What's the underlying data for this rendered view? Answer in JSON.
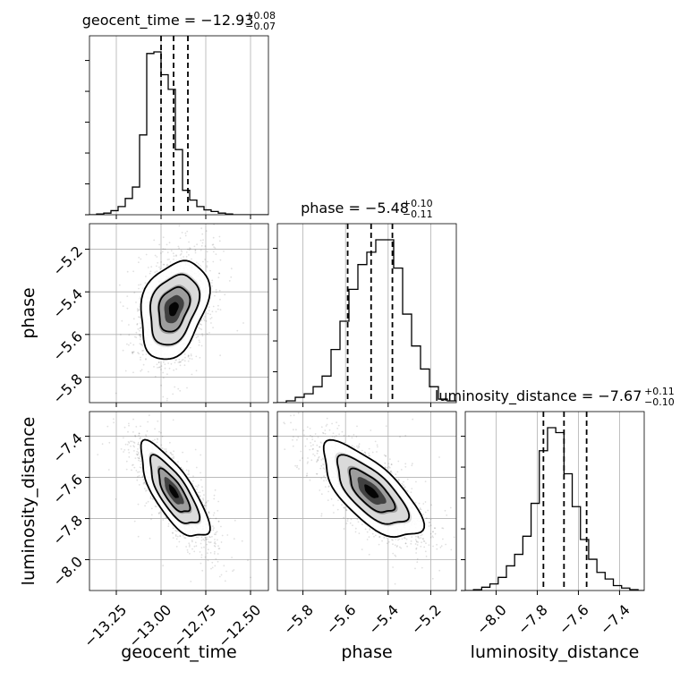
{
  "chart_data": {
    "type": "corner",
    "parameters": [
      "geocent_time",
      "phase",
      "luminosity_distance"
    ],
    "ranges": [
      [
        -13.4,
        -12.4
      ],
      [
        -5.92,
        -5.08
      ],
      [
        -8.15,
        -7.28
      ]
    ],
    "ticks": [
      {
        "values": [
          -13.25,
          -13.0,
          -12.75,
          -12.5
        ],
        "labels": [
          "−13.25",
          "−13.00",
          "−12.75",
          "−12.50"
        ]
      },
      {
        "values": [
          -5.8,
          -5.6,
          -5.4,
          -5.2
        ],
        "labels": [
          "−5.8",
          "−5.6",
          "−5.4",
          "−5.2"
        ]
      },
      {
        "values": [
          -8.0,
          -7.8,
          -7.6,
          -7.4
        ],
        "labels": [
          "−8.0",
          "−7.8",
          "−7.6",
          "−7.4"
        ]
      }
    ],
    "titles": [
      {
        "prefix": "geocent_time = −12.93",
        "plus": "+0.08",
        "minus": "−0.07"
      },
      {
        "prefix": "phase = −5.48",
        "plus": "+0.10",
        "minus": "−0.11"
      },
      {
        "prefix": "luminosity_distance = −7.67",
        "plus": "+0.11",
        "minus": "−0.10"
      }
    ],
    "quantiles": [
      [
        -13.0,
        -12.93,
        -12.85
      ],
      [
        -5.59,
        -5.48,
        -5.38
      ],
      [
        -7.77,
        -7.67,
        -7.56
      ]
    ],
    "histograms": [
      {
        "edges_start": -13.4,
        "bin_width": 0.04,
        "counts": [
          0.0,
          0.5,
          1.0,
          2.5,
          5.0,
          10.0,
          17.0,
          49.0,
          99.0,
          100.0,
          86.0,
          77.0,
          40.0,
          15.0,
          9.0,
          5.0,
          3.0,
          2.0,
          1.0,
          0.5,
          0.0,
          0.0,
          0.0,
          0.0,
          0.0
        ]
      },
      {
        "edges_start": -5.92,
        "bin_width": 0.042,
        "counts": [
          0.0,
          1.0,
          3.0,
          5.0,
          9.0,
          15.0,
          30.0,
          46.0,
          64.0,
          78.0,
          85.0,
          92.0,
          92.0,
          76.0,
          50.0,
          32.0,
          19.0,
          9.0,
          2.0,
          1.0
        ]
      },
      {
        "edges_start": -8.15,
        "bin_width": 0.04,
        "counts": [
          0.0,
          0.5,
          2.0,
          4.0,
          8.0,
          15.0,
          22.0,
          33.0,
          53.0,
          85.0,
          99.0,
          96.0,
          71.0,
          51.0,
          31.0,
          19.0,
          11.0,
          7.0,
          3.0,
          1.5,
          0.5,
          0.0
        ]
      }
    ],
    "correlations": [
      {
        "x": "geocent_time",
        "y": "phase",
        "center": [
          -12.93,
          -5.48
        ],
        "sigma": [
          0.09,
          0.11
        ],
        "rho": 0.3
      },
      {
        "x": "geocent_time",
        "y": "luminosity_distance",
        "center": [
          -12.93,
          -7.67
        ],
        "sigma": [
          0.09,
          0.11
        ],
        "rho": -0.75
      },
      {
        "x": "phase",
        "y": "luminosity_distance",
        "center": [
          -5.48,
          -7.67
        ],
        "sigma": [
          0.11,
          0.11
        ],
        "rho": -0.7
      }
    ],
    "axis_labels": [
      "geocent_time",
      "phase",
      "luminosity_distance"
    ],
    "grid": true
  }
}
